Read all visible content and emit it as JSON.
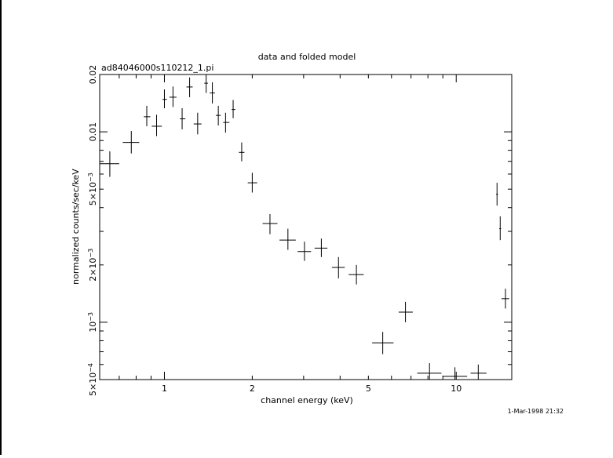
{
  "chart_data": {
    "type": "scatter",
    "title": "data and folded model",
    "subtitle": "ad84046000s110212_1.pi",
    "xlabel": "channel energy (keV)",
    "ylabel": "normalized counts/sec/keV",
    "timestamp": "1-Mar-1998 21:32",
    "x_scale": "log",
    "y_scale": "log",
    "xlim": [
      0.6,
      15.5
    ],
    "ylim": [
      0.0005,
      0.02
    ],
    "x_ticks": [
      {
        "value": 1,
        "label": "1"
      },
      {
        "value": 2,
        "label": "2"
      },
      {
        "value": 5,
        "label": "5"
      },
      {
        "value": 10,
        "label": "10"
      }
    ],
    "y_ticks": [
      {
        "value": 0.0005,
        "label": "5×10",
        "exp": "−4"
      },
      {
        "value": 0.001,
        "label": "10",
        "exp": "−3"
      },
      {
        "value": 0.002,
        "label": "2×10",
        "exp": "−3"
      },
      {
        "value": 0.005,
        "label": "5×10",
        "exp": "−3"
      },
      {
        "value": 0.01,
        "label": "0.01",
        "exp": ""
      },
      {
        "value": 0.02,
        "label": "0.02",
        "exp": ""
      }
    ],
    "points": [
      {
        "x": 0.65,
        "xlo": 0.6,
        "xhi": 0.7,
        "y": 0.0068,
        "ylo": 0.0058,
        "yhi": 0.0079
      },
      {
        "x": 0.77,
        "xlo": 0.72,
        "xhi": 0.82,
        "y": 0.0088,
        "ylo": 0.0077,
        "yhi": 0.0101
      },
      {
        "x": 0.87,
        "xlo": 0.85,
        "xhi": 0.895,
        "y": 0.012,
        "ylo": 0.0107,
        "yhi": 0.0137
      },
      {
        "x": 0.94,
        "xlo": 0.905,
        "xhi": 0.98,
        "y": 0.0107,
        "ylo": 0.0095,
        "yhi": 0.0123
      },
      {
        "x": 1.0,
        "xlo": 0.985,
        "xhi": 1.02,
        "y": 0.0148,
        "ylo": 0.0133,
        "yhi": 0.0167
      },
      {
        "x": 1.07,
        "xlo": 1.04,
        "xhi": 1.1,
        "y": 0.0152,
        "ylo": 0.0135,
        "yhi": 0.0173
      },
      {
        "x": 1.15,
        "xlo": 1.13,
        "xhi": 1.18,
        "y": 0.0117,
        "ylo": 0.0103,
        "yhi": 0.0133
      },
      {
        "x": 1.22,
        "xlo": 1.19,
        "xhi": 1.25,
        "y": 0.0172,
        "ylo": 0.0152,
        "yhi": 0.0193
      },
      {
        "x": 1.3,
        "xlo": 1.26,
        "xhi": 1.34,
        "y": 0.011,
        "ylo": 0.0097,
        "yhi": 0.0126
      },
      {
        "x": 1.39,
        "xlo": 1.37,
        "xhi": 1.41,
        "y": 0.018,
        "ylo": 0.016,
        "yhi": 0.0203
      },
      {
        "x": 1.46,
        "xlo": 1.43,
        "xhi": 1.49,
        "y": 0.016,
        "ylo": 0.0141,
        "yhi": 0.0182
      },
      {
        "x": 1.53,
        "xlo": 1.5,
        "xhi": 1.56,
        "y": 0.0122,
        "ylo": 0.0108,
        "yhi": 0.0137
      },
      {
        "x": 1.62,
        "xlo": 1.59,
        "xhi": 1.67,
        "y": 0.0112,
        "ylo": 0.0099,
        "yhi": 0.0126
      },
      {
        "x": 1.72,
        "xlo": 1.7,
        "xhi": 1.75,
        "y": 0.0131,
        "ylo": 0.0118,
        "yhi": 0.0147
      },
      {
        "x": 1.84,
        "xlo": 1.8,
        "xhi": 1.88,
        "y": 0.0078,
        "ylo": 0.007,
        "yhi": 0.0088
      },
      {
        "x": 2.0,
        "xlo": 1.93,
        "xhi": 2.08,
        "y": 0.0054,
        "ylo": 0.0048,
        "yhi": 0.0061
      },
      {
        "x": 2.3,
        "xlo": 2.17,
        "xhi": 2.44,
        "y": 0.0033,
        "ylo": 0.0029,
        "yhi": 0.0037
      },
      {
        "x": 2.65,
        "xlo": 2.48,
        "xhi": 2.82,
        "y": 0.0027,
        "ylo": 0.0024,
        "yhi": 0.0031
      },
      {
        "x": 3.02,
        "xlo": 2.86,
        "xhi": 3.18,
        "y": 0.00235,
        "ylo": 0.0021,
        "yhi": 0.00265
      },
      {
        "x": 3.45,
        "xlo": 3.27,
        "xhi": 3.62,
        "y": 0.00245,
        "ylo": 0.0022,
        "yhi": 0.00275
      },
      {
        "x": 3.95,
        "xlo": 3.75,
        "xhi": 4.15,
        "y": 0.00194,
        "ylo": 0.0017,
        "yhi": 0.0022
      },
      {
        "x": 4.55,
        "xlo": 4.28,
        "xhi": 4.82,
        "y": 0.00178,
        "ylo": 0.00158,
        "yhi": 0.002
      },
      {
        "x": 5.6,
        "xlo": 5.15,
        "xhi": 6.1,
        "y": 0.00078,
        "ylo": 0.00068,
        "yhi": 0.00089
      },
      {
        "x": 6.7,
        "xlo": 6.35,
        "xhi": 7.1,
        "y": 0.00113,
        "ylo": 0.001,
        "yhi": 0.00128
      },
      {
        "x": 8.1,
        "xlo": 7.35,
        "xhi": 8.9,
        "y": 0.00054,
        "ylo": 0.00046,
        "yhi": 0.00061
      },
      {
        "x": 9.9,
        "xlo": 9.0,
        "xhi": 10.9,
        "y": 0.00052,
        "ylo": 0.00045,
        "yhi": 0.00058
      },
      {
        "x": 11.9,
        "xlo": 11.2,
        "xhi": 12.7,
        "y": 0.00054,
        "ylo": 0.00048,
        "yhi": 0.0006
      },
      {
        "x": 13.8,
        "xlo": 13.7,
        "xhi": 13.9,
        "y": 0.0047,
        "ylo": 0.0041,
        "yhi": 0.0054
      },
      {
        "x": 14.15,
        "xlo": 14.05,
        "xhi": 14.25,
        "y": 0.0031,
        "ylo": 0.0027,
        "yhi": 0.0036
      },
      {
        "x": 14.75,
        "xlo": 14.3,
        "xhi": 15.2,
        "y": 0.00133,
        "ylo": 0.00118,
        "yhi": 0.0015
      }
    ]
  }
}
